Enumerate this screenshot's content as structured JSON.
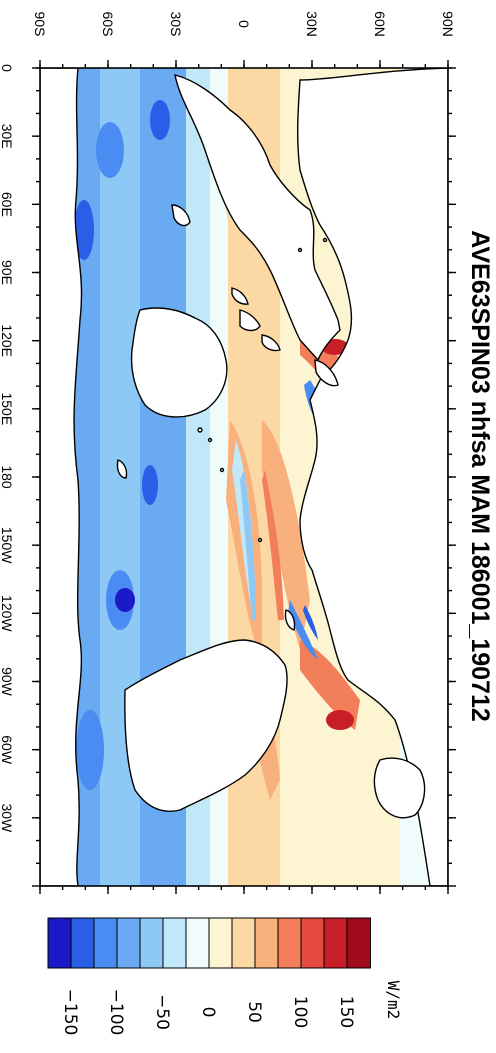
{
  "title": "AVE63SPIN03 nhfsa MAM 186001_190712",
  "units": "W/m2",
  "lon_labels": [
    "0",
    "30E",
    "60E",
    "90E",
    "120E",
    "150E",
    "180",
    "150W",
    "120W",
    "90W",
    "60W",
    "30W"
  ],
  "lat_labels": [
    "90S",
    "60S",
    "30S",
    "0",
    "30N",
    "60N",
    "90N"
  ],
  "colorbar": {
    "labels": [
      "−150",
      "−100",
      "−50",
      "0",
      "50",
      "100",
      "150"
    ],
    "colors": [
      "#1a1ac8",
      "#2a5ee6",
      "#4a8cf2",
      "#6aaaf2",
      "#8ec8f4",
      "#c0e8f8",
      "#f0fbfb",
      "#fdf5d2",
      "#fcd8a4",
      "#f8b07c",
      "#f27e5a",
      "#e44a3e",
      "#c81e28",
      "#a00a1c"
    ]
  },
  "colors": {
    "land": "#ffffff",
    "coast": "#000000"
  }
}
